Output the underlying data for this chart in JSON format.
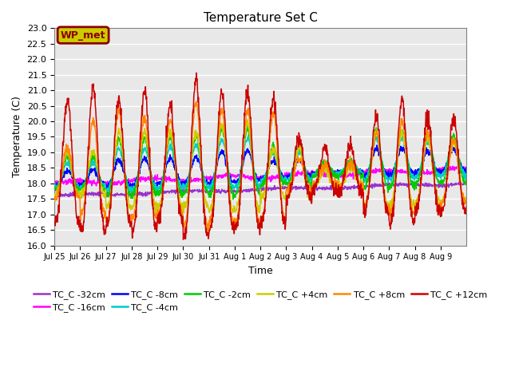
{
  "title": "Temperature Set C",
  "xlabel": "Time",
  "ylabel": "Temperature (C)",
  "ylim": [
    16.0,
    23.0
  ],
  "series_colors": {
    "TC_C -32cm": "#9933CC",
    "TC_C -16cm": "#FF00FF",
    "TC_C -8cm": "#0000FF",
    "TC_C -4cm": "#00CCCC",
    "TC_C -2cm": "#00CC00",
    "TC_C +4cm": "#CCCC00",
    "TC_C +8cm": "#FF8800",
    "TC_C +12cm": "#CC0000"
  },
  "legend_label": "WP_met",
  "legend_box_color": "#CCCC00",
  "legend_box_border": "#8B0000",
  "background_color": "#E8E8E8",
  "grid_color": "#FFFFFF",
  "tick_labels": [
    "Jul 25",
    "Jul 26",
    "Jul 27",
    "Jul 28",
    "Jul 29",
    "Jul 30",
    "Jul 31",
    "Aug 1",
    "Aug 2",
    "Aug 3",
    "Aug 4",
    "Aug 5",
    "Aug 6",
    "Aug 7",
    "Aug 8",
    "Aug 9"
  ]
}
